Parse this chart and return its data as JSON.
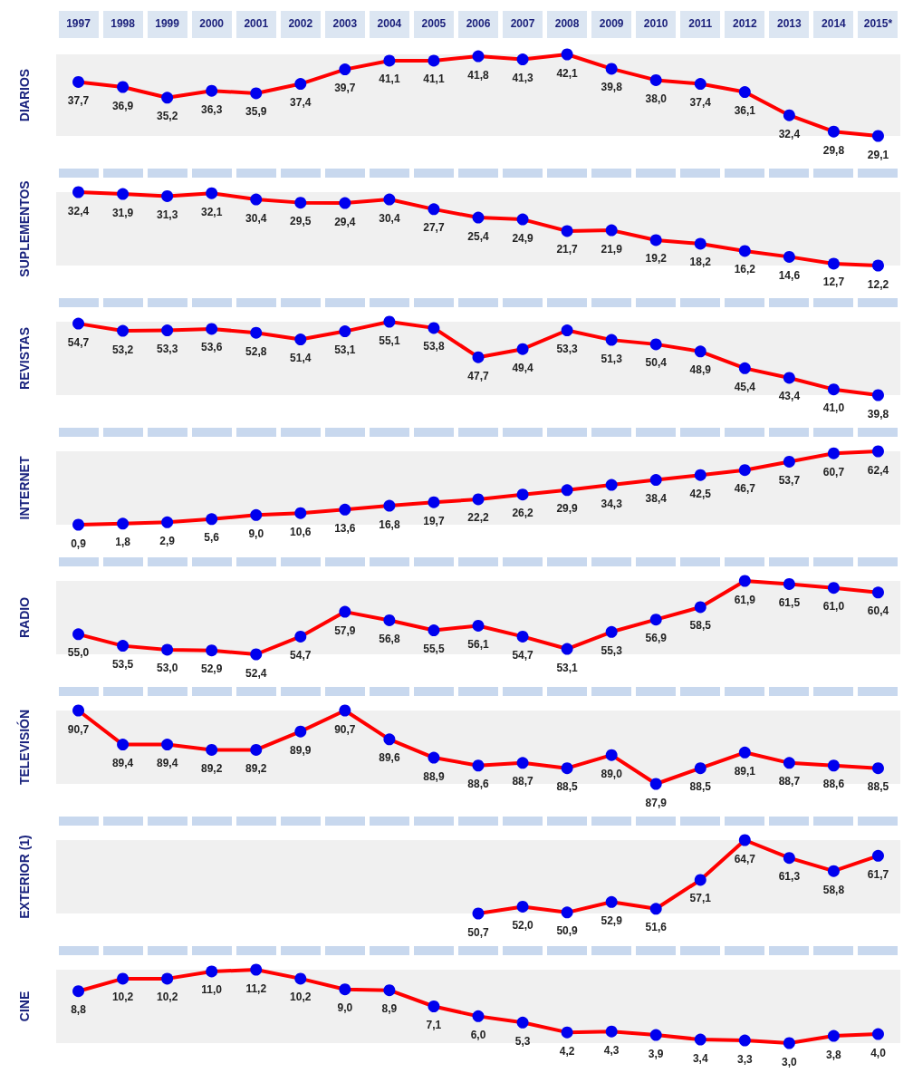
{
  "chart_data": [
    {
      "type": "line",
      "ylabel": "DIARIOS",
      "categories": [
        "1997",
        "1998",
        "1999",
        "2000",
        "2001",
        "2002",
        "2003",
        "2004",
        "2005",
        "2006",
        "2007",
        "2008",
        "2009",
        "2010",
        "2011",
        "2012",
        "2013",
        "2014",
        "2015*"
      ],
      "values": [
        37.7,
        36.9,
        35.2,
        36.3,
        35.9,
        37.4,
        39.7,
        41.1,
        41.1,
        41.8,
        41.3,
        42.1,
        39.8,
        38.0,
        37.4,
        36.1,
        32.4,
        29.8,
        29.1
      ],
      "value_labels": [
        "37,7",
        "36,9",
        "35,2",
        "36,3",
        "35,9",
        "37,4",
        "39,7",
        "41,1",
        "41,1",
        "41,8",
        "41,3",
        "42,1",
        "39,8",
        "38,0",
        "37,4",
        "36,1",
        "32,4",
        "29,8",
        "29,1"
      ],
      "color": "#ff0000",
      "marker": "circle",
      "grid": false,
      "tick_labels": "x"
    },
    {
      "type": "line",
      "ylabel": "SUPLEMENTOS",
      "categories": [
        null,
        null,
        null,
        null,
        null,
        null,
        null,
        null,
        null,
        null,
        null,
        null,
        null,
        null,
        null,
        null,
        null,
        null,
        null
      ],
      "values": [
        32.4,
        31.9,
        31.3,
        32.1,
        30.4,
        29.5,
        29.4,
        30.4,
        27.7,
        25.4,
        24.9,
        21.7,
        21.9,
        19.2,
        18.2,
        16.2,
        14.6,
        12.7,
        12.2
      ],
      "value_labels": [
        "32,4",
        "31,9",
        "31,3",
        "32,1",
        "30,4",
        "29,5",
        "29,4",
        "30,4",
        "27,7",
        "25,4",
        "24,9",
        "21,7",
        "21,9",
        "19,2",
        "18,2",
        "16,2",
        "14,6",
        "12,7",
        "12,2"
      ],
      "color": "#ff0000",
      "marker": "circle",
      "grid": false,
      "tick_labels": false
    },
    {
      "type": "line",
      "ylabel": "REVISTAS",
      "categories": [
        null,
        null,
        null,
        null,
        null,
        null,
        null,
        null,
        null,
        null,
        null,
        null,
        null,
        null,
        null,
        null,
        null,
        null,
        null
      ],
      "values": [
        54.7,
        53.2,
        53.3,
        53.6,
        52.8,
        51.4,
        53.1,
        55.1,
        53.8,
        47.7,
        49.4,
        53.3,
        51.3,
        50.4,
        48.9,
        45.4,
        43.4,
        41.0,
        39.8
      ],
      "value_labels": [
        "54,7",
        "53,2",
        "53,3",
        "53,6",
        "52,8",
        "51,4",
        "53,1",
        "55,1",
        "53,8",
        "47,7",
        "49,4",
        "53,3",
        "51,3",
        "50,4",
        "48,9",
        "45,4",
        "43,4",
        "41,0",
        "39,8"
      ],
      "color": "#ff0000",
      "marker": "circle",
      "grid": false,
      "tick_labels": false
    },
    {
      "type": "line",
      "ylabel": "INTERNET",
      "categories": [
        null,
        null,
        null,
        null,
        null,
        null,
        null,
        null,
        null,
        null,
        null,
        null,
        null,
        null,
        null,
        null,
        null,
        null,
        null
      ],
      "values": [
        0.9,
        1.8,
        2.9,
        5.6,
        9.0,
        10.6,
        13.6,
        16.8,
        19.7,
        22.2,
        26.2,
        29.9,
        34.3,
        38.4,
        42.5,
        46.7,
        53.7,
        60.7,
        62.4
      ],
      "value_labels": [
        "0,9",
        "1,8",
        "2,9",
        "5,6",
        "9,0",
        "10,6",
        "13,6",
        "16,8",
        "19,7",
        "22,2",
        "26,2",
        "29,9",
        "34,3",
        "38,4",
        "42,5",
        "46,7",
        "53,7",
        "60,7",
        "62,4"
      ],
      "color": "#ff0000",
      "marker": "circle",
      "grid": false,
      "tick_labels": false
    },
    {
      "type": "line",
      "ylabel": "RADIO",
      "categories": [
        null,
        null,
        null,
        null,
        null,
        null,
        null,
        null,
        null,
        null,
        null,
        null,
        null,
        null,
        null,
        null,
        null,
        null,
        null
      ],
      "values": [
        55.0,
        53.5,
        53.0,
        52.9,
        52.4,
        54.7,
        57.9,
        56.8,
        55.5,
        56.1,
        54.7,
        53.1,
        55.3,
        56.9,
        58.5,
        61.9,
        61.5,
        61.0,
        60.4
      ],
      "value_labels": [
        "55,0",
        "53,5",
        "53,0",
        "52,9",
        "52,4",
        "54,7",
        "57,9",
        "56,8",
        "55,5",
        "56,1",
        "54,7",
        "53,1",
        "55,3",
        "56,9",
        "58,5",
        "61,9",
        "61,5",
        "61,0",
        "60,4"
      ],
      "color": "#ff0000",
      "marker": "circle",
      "grid": false,
      "tick_labels": false
    },
    {
      "type": "line",
      "ylabel": "TELEVISIÓN",
      "categories": [
        null,
        null,
        null,
        null,
        null,
        null,
        null,
        null,
        null,
        null,
        null,
        null,
        null,
        null,
        null,
        null,
        null,
        null,
        null
      ],
      "values": [
        90.7,
        89.4,
        89.4,
        89.2,
        89.2,
        89.9,
        90.7,
        89.6,
        88.9,
        88.6,
        88.7,
        88.5,
        89.0,
        87.9,
        88.5,
        89.1,
        88.7,
        88.6,
        88.5
      ],
      "value_labels": [
        "90,7",
        "89,4",
        "89,4",
        "89,2",
        "89,2",
        "89,9",
        "90,7",
        "89,6",
        "88,9",
        "88,6",
        "88,7",
        "88,5",
        "89,0",
        "87,9",
        "88,5",
        "89,1",
        "88,7",
        "88,6",
        "88,5"
      ],
      "color": "#ff0000",
      "marker": "circle",
      "grid": false,
      "tick_labels": false
    },
    {
      "type": "line",
      "ylabel": "EXTERIOR (1)",
      "categories": [
        null,
        null,
        null,
        null,
        null,
        null,
        null,
        null,
        null,
        null,
        null,
        null,
        null,
        null,
        null,
        null,
        null,
        null,
        null
      ],
      "values": [
        null,
        null,
        null,
        null,
        null,
        null,
        null,
        null,
        null,
        50.7,
        52.0,
        50.9,
        52.9,
        51.6,
        57.1,
        64.7,
        61.3,
        58.8,
        61.7
      ],
      "value_labels": [
        null,
        null,
        null,
        null,
        null,
        null,
        null,
        null,
        null,
        "50,7",
        "52,0",
        "50,9",
        "52,9",
        "51,6",
        "57,1",
        "64,7",
        "61,3",
        "58,8",
        "61,7"
      ],
      "color": "#ff0000",
      "marker": "circle",
      "grid": false,
      "tick_labels": false
    },
    {
      "type": "line",
      "ylabel": "CINE",
      "categories": [
        null,
        null,
        null,
        null,
        null,
        null,
        null,
        null,
        null,
        null,
        null,
        null,
        null,
        null,
        null,
        null,
        null,
        null,
        null
      ],
      "values": [
        8.8,
        10.2,
        10.2,
        11.0,
        11.2,
        10.2,
        9.0,
        8.9,
        7.1,
        6.0,
        5.3,
        4.2,
        4.3,
        3.9,
        3.4,
        3.3,
        3.0,
        3.8,
        4.0
      ],
      "value_labels": [
        "8,8",
        "10,2",
        "10,2",
        "11,0",
        "11,2",
        "10,2",
        "9,0",
        "8,9",
        "7,1",
        "6,0",
        "5,3",
        "4,2",
        "4,3",
        "3,9",
        "3,4",
        "3,3",
        "3,0",
        "3,8",
        "4,0"
      ],
      "color": "#ff0000",
      "marker": "circle",
      "grid": false,
      "tick_labels": false
    }
  ]
}
